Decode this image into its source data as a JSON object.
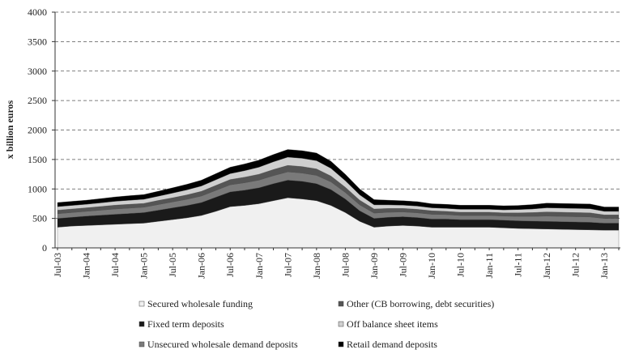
{
  "chart_data": {
    "type": "stacked_area",
    "y_label": "x billion euros",
    "categories": [
      "Jul-03",
      null,
      "Jan-04",
      null,
      "Jul-04",
      null,
      "Jan-05",
      null,
      "Jul-05",
      null,
      "Jan-06",
      null,
      "Jul-06",
      null,
      "Jan-07",
      null,
      "Jul-07",
      null,
      "Jan-08",
      null,
      "Jul-08",
      null,
      "Jan-09",
      null,
      "Jul-09",
      null,
      "Jan-10",
      null,
      "Jul-10",
      null,
      "Jan-11",
      null,
      "Jul-11",
      null,
      "Jan-12",
      null,
      "Jul-12",
      null,
      "Jan-13",
      null
    ],
    "ylim": [
      0,
      4000
    ],
    "yticks": [
      0,
      500,
      1000,
      1500,
      2000,
      2500,
      3000,
      3500,
      4000
    ],
    "grid": true,
    "series": [
      {
        "name": "Secured wholesale funding",
        "color": "#f0f0f0",
        "values": [
          350,
          370,
          380,
          390,
          400,
          410,
          420,
          450,
          480,
          510,
          550,
          620,
          700,
          720,
          750,
          800,
          850,
          830,
          800,
          720,
          600,
          450,
          350,
          370,
          380,
          370,
          350,
          350,
          350,
          350,
          350,
          340,
          330,
          325,
          320,
          315,
          310,
          305,
          300,
          300
        ]
      },
      {
        "name": "Fixed term deposits",
        "color": "#1a1a1a",
        "values": [
          150,
          150,
          160,
          165,
          170,
          175,
          180,
          190,
          200,
          210,
          220,
          240,
          250,
          260,
          270,
          290,
          300,
          300,
          290,
          270,
          230,
          180,
          150,
          150,
          150,
          145,
          140,
          140,
          130,
          130,
          130,
          130,
          130,
          130,
          130,
          130,
          130,
          130,
          120,
          120
        ]
      },
      {
        "name": "Unsecured wholesale demand deposits",
        "color": "#7a7a7a",
        "values": [
          80,
          80,
          80,
          85,
          90,
          90,
          90,
          95,
          100,
          105,
          110,
          115,
          120,
          125,
          130,
          135,
          140,
          140,
          140,
          130,
          110,
          100,
          90,
          85,
          80,
          80,
          80,
          75,
          70,
          70,
          70,
          70,
          75,
          80,
          90,
          90,
          90,
          90,
          80,
          80
        ]
      },
      {
        "name": "Other (CB borrowing, debt securities)",
        "color": "#555555",
        "values": [
          60,
          60,
          60,
          62,
          65,
          65,
          65,
          70,
          70,
          75,
          80,
          85,
          90,
          95,
          100,
          105,
          110,
          110,
          110,
          100,
          90,
          80,
          70,
          65,
          60,
          60,
          60,
          55,
          55,
          55,
          55,
          55,
          60,
          65,
          70,
          70,
          70,
          70,
          60,
          60
        ]
      },
      {
        "name": "Off balance sheet items",
        "color": "#cfcfcf",
        "values": [
          60,
          60,
          60,
          62,
          65,
          68,
          70,
          72,
          80,
          85,
          90,
          95,
          100,
          110,
          120,
          130,
          140,
          140,
          140,
          130,
          110,
          90,
          70,
          60,
          55,
          55,
          50,
          50,
          50,
          50,
          50,
          50,
          55,
          60,
          70,
          70,
          70,
          70,
          60,
          60
        ]
      },
      {
        "name": "Retail demand deposits",
        "color": "#000000",
        "values": [
          70,
          70,
          70,
          72,
          75,
          78,
          80,
          85,
          90,
          95,
          100,
          105,
          110,
          115,
          120,
          125,
          130,
          130,
          130,
          120,
          110,
          100,
          90,
          80,
          75,
          75,
          70,
          70,
          70,
          70,
          70,
          70,
          70,
          75,
          80,
          80,
          80,
          80,
          75,
          75
        ]
      }
    ]
  }
}
